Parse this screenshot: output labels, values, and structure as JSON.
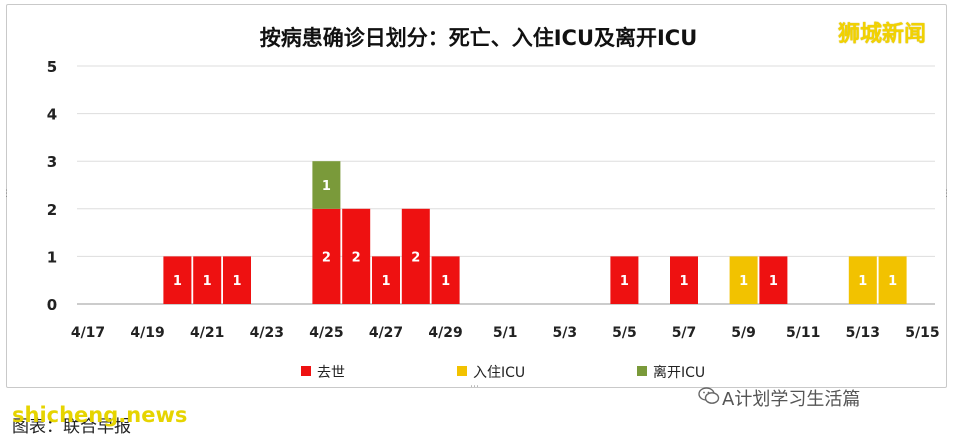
{
  "brand": "狮城新闻",
  "watermark": "shicheng.news",
  "source": "图表：联合早报",
  "wechat_account": "A计划学习生活篇",
  "colors": {
    "died": "#ee1111",
    "icu_in": "#f2c200",
    "icu_out": "#7a9a3a"
  },
  "chart_data": {
    "type": "bar",
    "stacked": true,
    "title": "按病患确诊日划分：死亡、入住ICU及离开ICU",
    "xlabel": "",
    "ylabel": "",
    "ylim": [
      0,
      5
    ],
    "yticks": [
      "0",
      "1",
      "2",
      "3",
      "4",
      "5"
    ],
    "grid": true,
    "legend_position": "bottom",
    "categories": [
      "4/17",
      "4/18",
      "4/19",
      "4/20",
      "4/21",
      "4/22",
      "4/23",
      "4/24",
      "4/25",
      "4/26",
      "4/27",
      "4/28",
      "4/29",
      "4/30",
      "5/1",
      "5/2",
      "5/3",
      "5/4",
      "5/5",
      "5/6",
      "5/7",
      "5/8",
      "5/9",
      "5/10",
      "5/11",
      "5/12",
      "5/13",
      "5/14",
      "5/15"
    ],
    "xtick_labels": [
      "4/17",
      "4/19",
      "4/21",
      "4/23",
      "4/25",
      "4/27",
      "4/29",
      "5/1",
      "5/3",
      "5/5",
      "5/7",
      "5/9",
      "5/11",
      "5/13",
      "5/15"
    ],
    "series": [
      {
        "name": "去世",
        "values": [
          0,
          0,
          0,
          1,
          1,
          1,
          0,
          0,
          2,
          2,
          1,
          2,
          1,
          0,
          0,
          0,
          0,
          0,
          1,
          0,
          1,
          0,
          0,
          1,
          0,
          0,
          0,
          0,
          0
        ]
      },
      {
        "name": "入住ICU",
        "values": [
          0,
          0,
          0,
          0,
          0,
          0,
          0,
          0,
          0,
          0,
          0,
          0,
          0,
          0,
          0,
          0,
          0,
          0,
          0,
          0,
          0,
          0,
          1,
          0,
          0,
          0,
          1,
          1,
          0
        ]
      },
      {
        "name": "离开ICU",
        "values": [
          0,
          0,
          0,
          0,
          0,
          0,
          0,
          0,
          1,
          0,
          0,
          0,
          0,
          0,
          0,
          0,
          0,
          0,
          0,
          0,
          0,
          0,
          0,
          0,
          0,
          0,
          0,
          0,
          0
        ]
      }
    ]
  }
}
